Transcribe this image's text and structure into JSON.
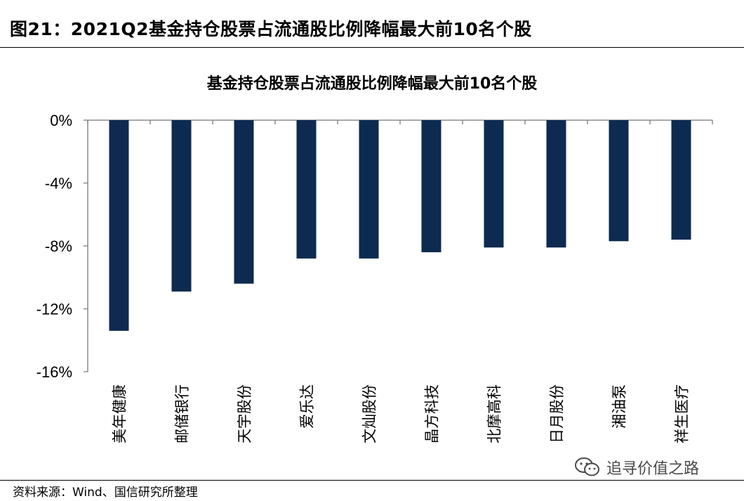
{
  "figure": {
    "title": "图21：2021Q2基金持仓股票占流通股比例降幅最大前10名个股",
    "source": "资料来源：Wind、国信研究所整理",
    "watermark": "追寻价值之路",
    "watermark_icon": "wechat-icon"
  },
  "colors": {
    "bar": "#0d2a50",
    "axis": "#8c8c8c",
    "text": "#000000"
  },
  "chart_data": {
    "type": "bar",
    "title": "基金持仓股票占流通股比例降幅最大前10名个股",
    "categories": [
      "美年健康",
      "邮储银行",
      "天宇股份",
      "爱乐达",
      "文灿股份",
      "晶方科技",
      "北摩高科",
      "日月股份",
      "湘油泵",
      "祥生医疗"
    ],
    "values": [
      -13.4,
      -10.9,
      -10.4,
      -8.8,
      -8.8,
      -8.4,
      -8.1,
      -8.1,
      -7.7,
      -7.6
    ],
    "ylim": [
      -16,
      0
    ],
    "yticks": [
      0,
      -4,
      -8,
      -12,
      -16
    ],
    "ytick_labels": [
      "0%",
      "-4%",
      "-8%",
      "-12%",
      "-16%"
    ],
    "xlabel": "",
    "ylabel": "",
    "grid": false,
    "legend": "none"
  }
}
